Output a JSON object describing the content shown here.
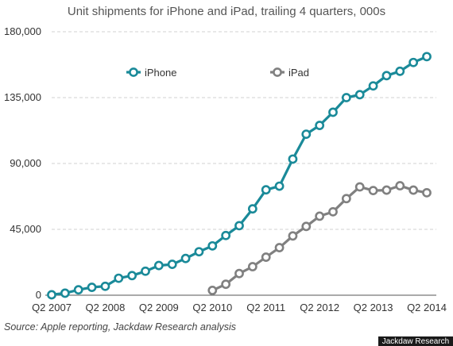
{
  "chart_data": {
    "type": "line",
    "title": "Unit shipments for iPhone and iPad, trailing 4 quarters, 000s",
    "xlabel": "",
    "ylabel": "",
    "ylim": [
      0,
      180000
    ],
    "y_ticks": [
      0,
      45000,
      90000,
      135000,
      180000
    ],
    "y_tick_labels": [
      "0",
      "45,000",
      "90,000",
      "135,000",
      "180,000"
    ],
    "x": [
      "Q2 2007",
      "Q3 2007",
      "Q4 2007",
      "Q1 2008",
      "Q2 2008",
      "Q3 2008",
      "Q4 2008",
      "Q1 2009",
      "Q2 2009",
      "Q3 2009",
      "Q4 2009",
      "Q1 2010",
      "Q2 2010",
      "Q3 2010",
      "Q4 2010",
      "Q1 2011",
      "Q2 2011",
      "Q3 2011",
      "Q4 2011",
      "Q1 2012",
      "Q2 2012",
      "Q3 2012",
      "Q4 2012",
      "Q1 2013",
      "Q2 2013",
      "Q3 2013",
      "Q4 2013",
      "Q1 2014",
      "Q2 2014"
    ],
    "x_tick_labels": [
      "Q2 2007",
      "Q2 2008",
      "Q2 2009",
      "Q2 2010",
      "Q2 2011",
      "Q2 2012",
      "Q2 2013",
      "Q2 2014"
    ],
    "series": [
      {
        "name": "iPhone",
        "color": "#1a8a99",
        "values": [
          300,
          1400,
          3700,
          5400,
          6100,
          11600,
          13400,
          16400,
          20300,
          21100,
          25100,
          29700,
          33700,
          40800,
          47500,
          59000,
          72000,
          74500,
          93000,
          110000,
          116000,
          125000,
          135000,
          137000,
          143000,
          150000,
          153000,
          159000,
          163000
        ]
      },
      {
        "name": "iPad",
        "color": "#808080",
        "values": [
          null,
          null,
          null,
          null,
          null,
          null,
          null,
          null,
          null,
          null,
          null,
          null,
          3300,
          7500,
          14800,
          19500,
          26000,
          32500,
          40500,
          47000,
          54000,
          57000,
          66000,
          74000,
          71500,
          71800,
          74800,
          71800,
          70000
        ]
      }
    ],
    "legend_position": "top-left, inside plot",
    "grid": true,
    "source": "Source: Apple reporting, Jackdaw Research analysis",
    "watermark": "Jackdaw Research"
  }
}
